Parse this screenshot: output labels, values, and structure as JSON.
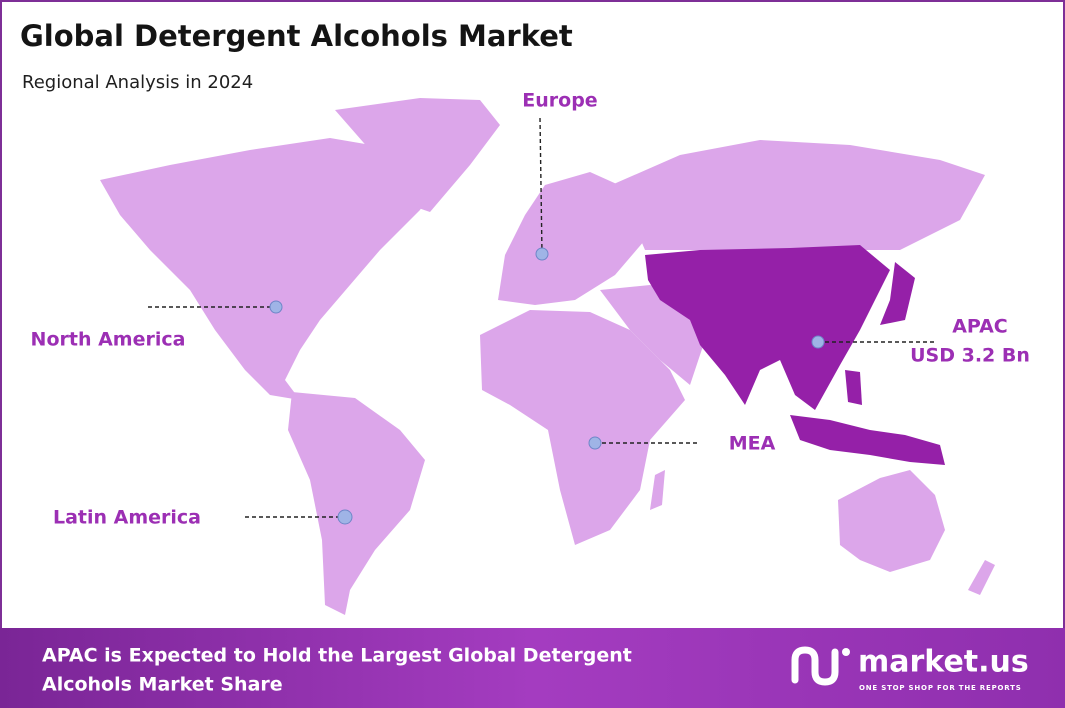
{
  "header": {
    "title": "Global Detergent Alcohols Market",
    "subtitle": "Regional Analysis in 2024"
  },
  "regions": [
    {
      "name": "Europe"
    },
    {
      "name": "North America"
    },
    {
      "name": "APAC",
      "value": "USD 3.2 Bn"
    },
    {
      "name": "MEA"
    },
    {
      "name": "Latin America"
    }
  ],
  "footer": {
    "text_lines": [
      "APAC is Expected to Hold the Largest Global Detergent",
      "Alcohols Market Share"
    ],
    "logo": "market.us",
    "tagline": "ONE STOP SHOP FOR THE REPORTS"
  }
}
